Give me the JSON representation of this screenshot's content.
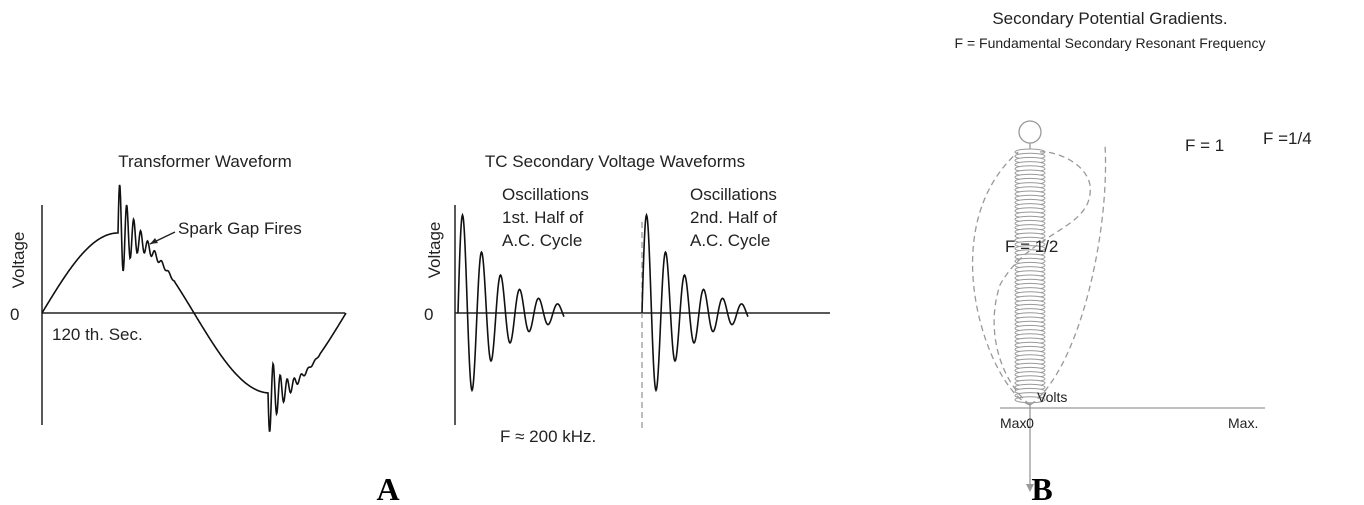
{
  "panel_a": {
    "transformer": {
      "title": "Transformer Waveform",
      "y_label": "Voltage",
      "zero": "0",
      "annotation": "Spark Gap Fires",
      "x_label": "120 th. Sec."
    },
    "tc_secondary": {
      "title": "TC Secondary Voltage Waveforms",
      "first_half": [
        "Oscillations",
        "1st. Half of",
        "A.C. Cycle"
      ],
      "second_half": [
        "Oscillations",
        "2nd. Half of",
        "A.C. Cycle"
      ],
      "y_label": "Voltage",
      "zero": "0",
      "frequency": "F ≈ 200 kHz."
    },
    "label": "A"
  },
  "panel_b": {
    "title": "Secondary Potential Gradients.",
    "subtitle": "F = Fundamental Secondary Resonant Frequency",
    "curves": [
      "F = 1",
      "F =1/4",
      "F = 1/2"
    ],
    "axis_label": "Volts",
    "left": "Max.",
    "center": "0",
    "right": "Max.",
    "label": "B"
  }
}
